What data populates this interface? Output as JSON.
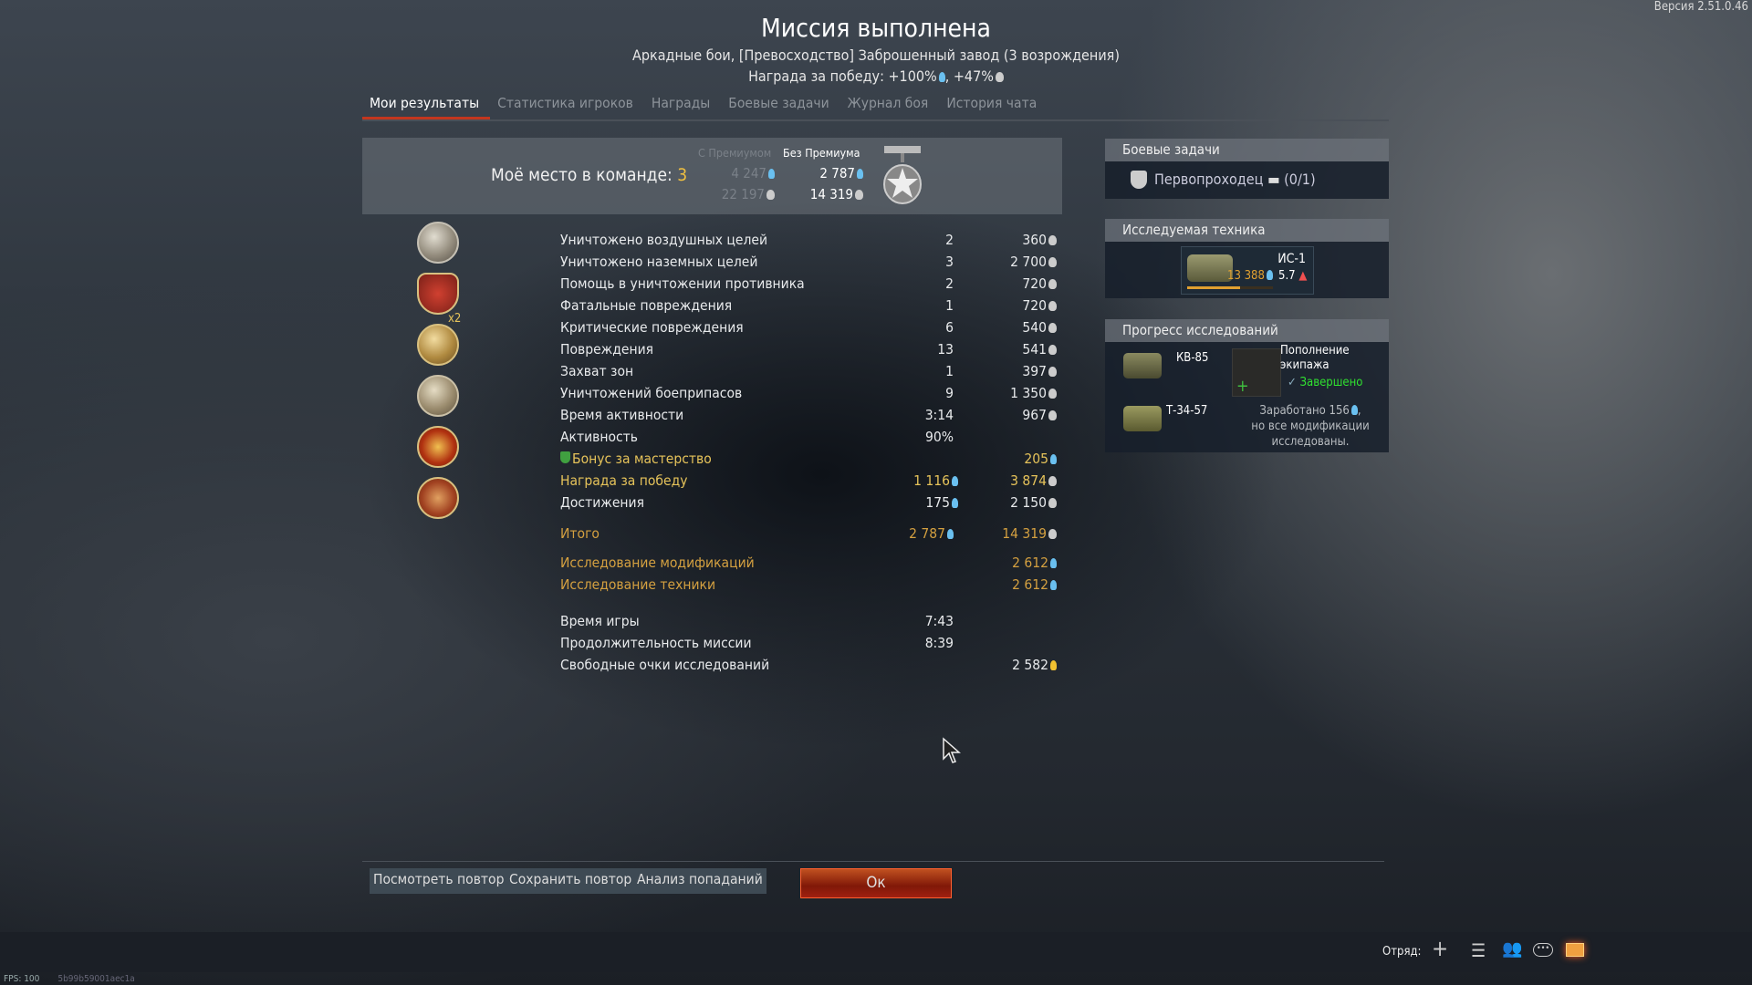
{
  "version": "Версия 2.51.0.46",
  "header": {
    "title": "Миссия выполнена",
    "subtitle": "Аркадные бои, [Превосходство] Заброшенный завод (3 возрождения)",
    "reward_line": "Награда за победу: +100%",
    "reward_line_2": ", +47%"
  },
  "tabs": [
    {
      "label": "Мои результаты",
      "active": true
    },
    {
      "label": "Статистика игроков"
    },
    {
      "label": "Награды"
    },
    {
      "label": "Боевые задачи"
    },
    {
      "label": "Журнал боя"
    },
    {
      "label": "История чата"
    }
  ],
  "summary": {
    "place_label": "Моё место в команде:",
    "place_value": "3",
    "col_premium": "С Премиумом",
    "col_no_premium": "Без Премиума",
    "premium_rp": "4 247",
    "premium_sl": "22 197",
    "no_premium_rp": "2 787",
    "no_premium_sl": "14 319"
  },
  "stats": [
    {
      "label": "Уничтожено воздушных целей",
      "count": "2",
      "value": "360",
      "icon": "silver-lion"
    },
    {
      "label": "Уничтожено наземных целей",
      "count": "3",
      "value": "2 700",
      "icon": "silver-lion"
    },
    {
      "label": "Помощь в уничтожении противника",
      "count": "2",
      "value": "720",
      "icon": "silver-lion"
    },
    {
      "label": "Фатальные повреждения",
      "count": "1",
      "value": "720",
      "icon": "silver-lion"
    },
    {
      "label": "Критические повреждения",
      "count": "6",
      "value": "540",
      "icon": "silver-lion"
    },
    {
      "label": "Повреждения",
      "count": "13",
      "value": "541",
      "icon": "silver-lion"
    },
    {
      "label": "Захват зон",
      "count": "1",
      "value": "397",
      "icon": "silver-lion"
    },
    {
      "label": "Уничтожений боеприпасов",
      "count": "9",
      "value": "1 350",
      "icon": "silver-lion"
    },
    {
      "label": "Время активности",
      "count": "3:14",
      "value": "967",
      "icon": "silver-lion"
    },
    {
      "label": "Активность",
      "count": "90%",
      "value": ""
    },
    {
      "label": "Бонус за мастерство",
      "count": "",
      "value": "205",
      "icon": "research-point",
      "style": "gold"
    },
    {
      "label": "Награда за победу",
      "count": "1 116",
      "value": "3 874",
      "icon": "silver-lion",
      "style": "gold"
    },
    {
      "label": "Достижения",
      "count": "175",
      "value": "2 150",
      "icon": "silver-lion"
    }
  ],
  "totals": {
    "label": "Итого",
    "rp": "2 787",
    "sl": "14 319"
  },
  "research": [
    {
      "label": "Исследование модификаций",
      "value": "2 612"
    },
    {
      "label": "Исследование техники",
      "value": "2 612"
    }
  ],
  "times": [
    {
      "label": "Время игры",
      "value": "7:43"
    },
    {
      "label": "Продолжительность миссии",
      "value": "8:39"
    },
    {
      "label": "Свободные очки исследований",
      "value": "2 582"
    }
  ],
  "awards": [
    "award-1",
    "award-2",
    "award-3",
    "award-4",
    "award-5",
    "award-6"
  ],
  "award_multiplier": "x2",
  "right": {
    "tasks_title": "Боевые задачи",
    "task": "Первопроходец",
    "task_progress": "(0/1)",
    "researched_title": "Исследуемая техника",
    "vehicle": "ИС-1",
    "vehicle_rp": "13 388",
    "vehicle_br": "5.7",
    "vehicle_progress": 0.62,
    "progress_title": "Прогресс исследований",
    "v1": "КВ-85",
    "v2": "Т-34-57",
    "crew_title": "Пополнение экипажа",
    "crew_status": "Завершено",
    "earned": "Заработано 156",
    "earned_2": "но все модификации исследованы."
  },
  "buttons": {
    "replay": "Посмотреть повтор",
    "save": "Сохранить повтор",
    "analysis": "Анализ попаданий",
    "ok": "Ок"
  },
  "bottombar": {
    "squad": "Отряд:"
  },
  "fps": "FPS: 100",
  "build_hash": "5b99b59001aec1a",
  "colors": {
    "accent": "#c3361e",
    "gold": "#e6c35a",
    "green": "#30e030",
    "rp": "#6ac0f0"
  }
}
